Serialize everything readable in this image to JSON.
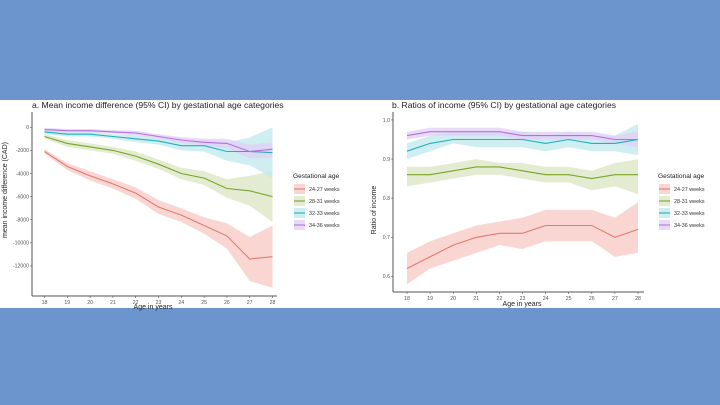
{
  "background_color": "#6d95cd",
  "legend": {
    "title": "Gestational age",
    "entries": [
      "24-27 weeks",
      "28-31 weeks",
      "32-33 weeks",
      "34-36 weeks"
    ]
  },
  "series_colors": {
    "24-27 weeks": "#e27b73",
    "28-31 weeks": "#7aa32a",
    "32-33 weeks": "#22b0bb",
    "34-36 weeks": "#b470e0"
  },
  "band_colors": {
    "24-27 weeks": "#f8c8c4",
    "28-31 weeks": "#d9e6c2",
    "32-33 weeks": "#bfe8ec",
    "34-36 weeks": "#e2cdf6"
  },
  "chart_data": [
    {
      "type": "line",
      "title": "a. Mean income difference (95% CI) by gestational age categories",
      "xlabel": "Age in years",
      "ylabel": "mean income difference (CAD)",
      "x": [
        18,
        19,
        20,
        21,
        22,
        23,
        24,
        25,
        26,
        27,
        28
      ],
      "xticks": [
        "18",
        "19",
        "20",
        "21",
        "22",
        "23",
        "24",
        "25",
        "26",
        "27",
        "28"
      ],
      "yticks": [
        0,
        -2000,
        -4000,
        -6000,
        -8000,
        -10000,
        -12000
      ],
      "ytick_labels": [
        "0",
        "-2000",
        "-4000",
        "-6000",
        "-8000",
        "-10000",
        "-12000"
      ],
      "ylim": [
        -14600,
        800
      ],
      "grid": false,
      "legend_position": "right",
      "series": [
        {
          "name": "24-27 weeks",
          "values": [
            -2100,
            -3400,
            -4200,
            -4900,
            -5700,
            -6900,
            -7600,
            -8500,
            -9400,
            -11400,
            -11200
          ],
          "lower": [
            -2300,
            -3700,
            -4600,
            -5300,
            -6200,
            -7500,
            -8200,
            -9200,
            -10500,
            -13300,
            -13900
          ],
          "upper": [
            -1900,
            -3100,
            -3800,
            -4500,
            -5200,
            -6300,
            -7000,
            -7800,
            -8300,
            -9500,
            -8500
          ]
        },
        {
          "name": "28-31 weeks",
          "values": [
            -800,
            -1400,
            -1700,
            -2000,
            -2500,
            -3200,
            -4000,
            -4400,
            -5300,
            -5500,
            -6000
          ],
          "lower": [
            -1000,
            -1700,
            -2000,
            -2300,
            -2900,
            -3600,
            -4500,
            -5000,
            -6100,
            -6800,
            -8200
          ],
          "upper": [
            -600,
            -1100,
            -1400,
            -1700,
            -2100,
            -2800,
            -3500,
            -3800,
            -4500,
            -4200,
            -3800
          ]
        },
        {
          "name": "32-33 weeks",
          "values": [
            -400,
            -600,
            -600,
            -800,
            -1000,
            -1200,
            -1600,
            -1600,
            -2100,
            -2100,
            -2200
          ],
          "lower": [
            -600,
            -800,
            -800,
            -1000,
            -1300,
            -1500,
            -2000,
            -2100,
            -2900,
            -3300,
            -4400
          ],
          "upper": [
            -200,
            -400,
            -400,
            -600,
            -700,
            -900,
            -1200,
            -1100,
            -1300,
            -900,
            0
          ]
        },
        {
          "name": "34-36 weeks",
          "values": [
            -200,
            -300,
            -300,
            -400,
            -500,
            -800,
            -1100,
            -1300,
            -1400,
            -2100,
            -1900
          ],
          "lower": [
            -350,
            -450,
            -450,
            -550,
            -700,
            -1000,
            -1350,
            -1600,
            -1800,
            -2700,
            -2600
          ],
          "upper": [
            -50,
            -150,
            -150,
            -250,
            -300,
            -600,
            -850,
            -1000,
            -1000,
            -1500,
            -1300
          ]
        }
      ]
    },
    {
      "type": "line",
      "title": "b. Ratios of income (95% CI) by gestational age categories",
      "xlabel": "Age in years",
      "ylabel": "Ratio of income",
      "x": [
        18,
        19,
        20,
        21,
        22,
        23,
        24,
        25,
        26,
        27,
        28
      ],
      "xticks": [
        "18",
        "19",
        "20",
        "21",
        "22",
        "23",
        "24",
        "25",
        "26",
        "27",
        "28"
      ],
      "yticks": [
        0.6,
        0.7,
        0.8,
        0.9,
        1.0
      ],
      "ytick_labels": [
        "0.6",
        "0.7",
        "0.8",
        "0.9",
        "1.0"
      ],
      "ylim": [
        0.56,
        1.005
      ],
      "grid": false,
      "legend_position": "right",
      "series": [
        {
          "name": "24-27 weeks",
          "values": [
            0.62,
            0.65,
            0.68,
            0.7,
            0.71,
            0.71,
            0.73,
            0.73,
            0.73,
            0.7,
            0.72
          ],
          "lower": [
            0.58,
            0.62,
            0.64,
            0.66,
            0.68,
            0.67,
            0.69,
            0.69,
            0.69,
            0.65,
            0.66
          ],
          "upper": [
            0.66,
            0.69,
            0.71,
            0.73,
            0.74,
            0.75,
            0.77,
            0.77,
            0.77,
            0.75,
            0.79
          ]
        },
        {
          "name": "28-31 weeks",
          "values": [
            0.86,
            0.86,
            0.87,
            0.88,
            0.88,
            0.87,
            0.86,
            0.86,
            0.85,
            0.86,
            0.86
          ],
          "lower": [
            0.83,
            0.84,
            0.85,
            0.86,
            0.86,
            0.85,
            0.84,
            0.84,
            0.82,
            0.83,
            0.81
          ],
          "upper": [
            0.88,
            0.88,
            0.89,
            0.9,
            0.89,
            0.89,
            0.88,
            0.88,
            0.87,
            0.89,
            0.9
          ]
        },
        {
          "name": "32-33 weeks",
          "values": [
            0.92,
            0.94,
            0.95,
            0.95,
            0.95,
            0.95,
            0.94,
            0.95,
            0.94,
            0.94,
            0.95
          ],
          "lower": [
            0.9,
            0.92,
            0.94,
            0.93,
            0.93,
            0.93,
            0.92,
            0.93,
            0.92,
            0.92,
            0.91
          ],
          "upper": [
            0.94,
            0.96,
            0.97,
            0.97,
            0.97,
            0.97,
            0.96,
            0.97,
            0.96,
            0.96,
            0.99
          ]
        },
        {
          "name": "34-36 weeks",
          "values": [
            0.96,
            0.97,
            0.97,
            0.97,
            0.97,
            0.96,
            0.96,
            0.96,
            0.96,
            0.95,
            0.95
          ],
          "lower": [
            0.95,
            0.96,
            0.96,
            0.96,
            0.96,
            0.95,
            0.95,
            0.95,
            0.95,
            0.94,
            0.93
          ],
          "upper": [
            0.97,
            0.98,
            0.98,
            0.98,
            0.98,
            0.97,
            0.97,
            0.97,
            0.97,
            0.96,
            0.97
          ]
        }
      ]
    }
  ]
}
